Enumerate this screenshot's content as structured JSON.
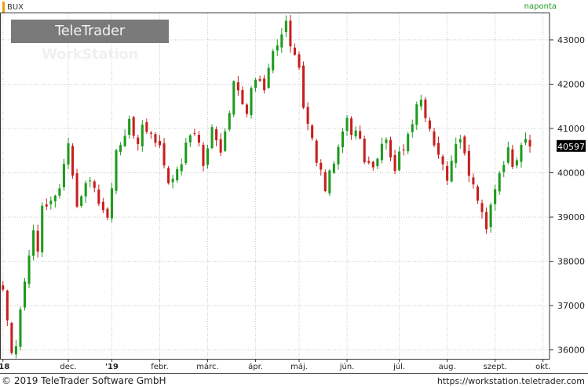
{
  "header": {
    "symbol": "BUX",
    "frequency": "naponta",
    "watermark_light": "TeleTrader",
    "watermark_bold": "WorkStation"
  },
  "footer": {
    "copyright": "© 2019 TeleTrader Software GmbH",
    "url": "https://workstation.teletrader.com"
  },
  "colors": {
    "up": "#1e9a1e",
    "down": "#c81e1e",
    "grid": "#c8c8c8",
    "axis": "#333333"
  },
  "chart_data": {
    "type": "candlestick",
    "y_axis_position": "right",
    "ylim": [
      35800,
      43600
    ],
    "yticks": [
      36000,
      37000,
      38000,
      39000,
      40000,
      41000,
      42000,
      43000
    ],
    "ytick_labels": [
      "36000",
      "37000",
      "38000",
      "39000",
      "40000",
      "41000",
      "42000",
      "43000"
    ],
    "x_labels": [
      "'18",
      "dec.",
      "'19",
      "febr.",
      "márc.",
      "ápr.",
      "máj.",
      "jún.",
      "júl.",
      "aug.",
      "szept.",
      "okt."
    ],
    "x_label_positions": [
      0,
      15,
      25,
      36,
      47,
      58,
      68,
      79,
      91,
      102,
      113,
      124
    ],
    "session_count": 126,
    "last_value": "40597",
    "close_path": [
      [
        0,
        37300
      ],
      [
        1,
        36600
      ],
      [
        2,
        36000
      ],
      [
        3,
        36100
      ],
      [
        5,
        37600
      ],
      [
        7,
        38700
      ],
      [
        8,
        38200
      ],
      [
        9,
        39300
      ],
      [
        11,
        39300
      ],
      [
        13,
        39700
      ],
      [
        14,
        40200
      ],
      [
        15,
        40700
      ],
      [
        16,
        40000
      ],
      [
        17,
        39200
      ],
      [
        19,
        39800
      ],
      [
        20,
        39900
      ],
      [
        21,
        39600
      ],
      [
        23,
        39100
      ],
      [
        24,
        39000
      ],
      [
        25,
        39700
      ],
      [
        26,
        40500
      ],
      [
        28,
        40800
      ],
      [
        29,
        41200
      ],
      [
        30,
        40900
      ],
      [
        31,
        40700
      ],
      [
        32,
        41100
      ],
      [
        33,
        41000
      ],
      [
        34,
        40800
      ],
      [
        36,
        40600
      ],
      [
        38,
        39700
      ],
      [
        39,
        39900
      ],
      [
        40,
        40100
      ],
      [
        41,
        40200
      ],
      [
        42,
        40700
      ],
      [
        43,
        40800
      ],
      [
        44,
        40900
      ],
      [
        45,
        40700
      ],
      [
        46,
        40200
      ],
      [
        47,
        40600
      ],
      [
        48,
        41000
      ],
      [
        49,
        40800
      ],
      [
        50,
        40500
      ],
      [
        51,
        40900
      ],
      [
        52,
        41300
      ],
      [
        53,
        42000
      ],
      [
        54,
        41800
      ],
      [
        55,
        41500
      ],
      [
        56,
        41300
      ],
      [
        57,
        41900
      ],
      [
        58,
        42100
      ],
      [
        60,
        41900
      ],
      [
        61,
        42400
      ],
      [
        62,
        42800
      ],
      [
        63,
        42900
      ],
      [
        64,
        43100
      ],
      [
        65,
        43400
      ],
      [
        66,
        42900
      ],
      [
        67,
        42600
      ],
      [
        68,
        42300
      ],
      [
        69,
        41500
      ],
      [
        70,
        41100
      ],
      [
        71,
        40800
      ],
      [
        72,
        40300
      ],
      [
        73,
        40000
      ],
      [
        74,
        39600
      ],
      [
        75,
        40000
      ],
      [
        76,
        40200
      ],
      [
        77,
        40600
      ],
      [
        78,
        41000
      ],
      [
        79,
        41200
      ],
      [
        80,
        40800
      ],
      [
        81,
        41000
      ],
      [
        82,
        40700
      ],
      [
        83,
        40300
      ],
      [
        85,
        40100
      ],
      [
        86,
        40300
      ],
      [
        87,
        40600
      ],
      [
        88,
        40800
      ],
      [
        89,
        40300
      ],
      [
        90,
        40100
      ],
      [
        91,
        40400
      ],
      [
        92,
        40600
      ],
      [
        93,
        40800
      ],
      [
        94,
        41100
      ],
      [
        95,
        41500
      ],
      [
        96,
        41600
      ],
      [
        97,
        41300
      ],
      [
        98,
        41000
      ],
      [
        99,
        40700
      ],
      [
        101,
        40200
      ],
      [
        102,
        39900
      ],
      [
        103,
        40300
      ],
      [
        104,
        40700
      ],
      [
        105,
        40800
      ],
      [
        106,
        40400
      ],
      [
        107,
        40000
      ],
      [
        108,
        39800
      ],
      [
        109,
        39300
      ],
      [
        110,
        39100
      ],
      [
        111,
        38800
      ],
      [
        112,
        39300
      ],
      [
        113,
        39700
      ],
      [
        114,
        40000
      ],
      [
        115,
        40200
      ],
      [
        116,
        40500
      ],
      [
        117,
        40100
      ],
      [
        118,
        40300
      ],
      [
        119,
        40600
      ],
      [
        120,
        40800
      ],
      [
        121,
        40597
      ]
    ],
    "volatility": 160,
    "seed": 17
  }
}
